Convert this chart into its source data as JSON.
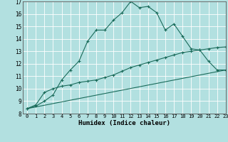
{
  "xlabel": "Humidex (Indice chaleur)",
  "background_color": "#b2e0e0",
  "line_color": "#1a6b5a",
  "xlim": [
    -0.5,
    23
  ],
  "ylim": [
    8,
    17
  ],
  "xticks": [
    0,
    1,
    2,
    3,
    4,
    5,
    6,
    7,
    8,
    9,
    10,
    11,
    12,
    13,
    14,
    15,
    16,
    17,
    18,
    19,
    20,
    21,
    22,
    23
  ],
  "yticks": [
    8,
    9,
    10,
    11,
    12,
    13,
    14,
    15,
    16,
    17
  ],
  "grid_color": "#ffffff",
  "series1_x": [
    0,
    1,
    2,
    3,
    4,
    5,
    6,
    7,
    8,
    9,
    10,
    11,
    12,
    13,
    14,
    15,
    16,
    17,
    18,
    19,
    20,
    21,
    22,
    23
  ],
  "series1_y": [
    8.4,
    8.6,
    9.0,
    9.5,
    10.7,
    11.5,
    12.2,
    13.8,
    14.7,
    14.7,
    15.5,
    16.1,
    17.0,
    16.5,
    16.6,
    16.1,
    14.7,
    15.2,
    14.2,
    13.2,
    13.1,
    12.2,
    11.5,
    11.5
  ],
  "series2_x": [
    0,
    1,
    2,
    3,
    4,
    5,
    6,
    7,
    8,
    9,
    10,
    11,
    12,
    13,
    14,
    15,
    16,
    17,
    18,
    19,
    20,
    21,
    22,
    23
  ],
  "series2_y": [
    8.4,
    8.7,
    9.7,
    10.0,
    10.2,
    10.3,
    10.5,
    10.6,
    10.7,
    10.9,
    11.1,
    11.4,
    11.7,
    11.9,
    12.1,
    12.3,
    12.5,
    12.7,
    12.9,
    13.0,
    13.1,
    13.2,
    13.3,
    13.35
  ],
  "series3_x": [
    0,
    23
  ],
  "series3_y": [
    8.4,
    11.5
  ]
}
